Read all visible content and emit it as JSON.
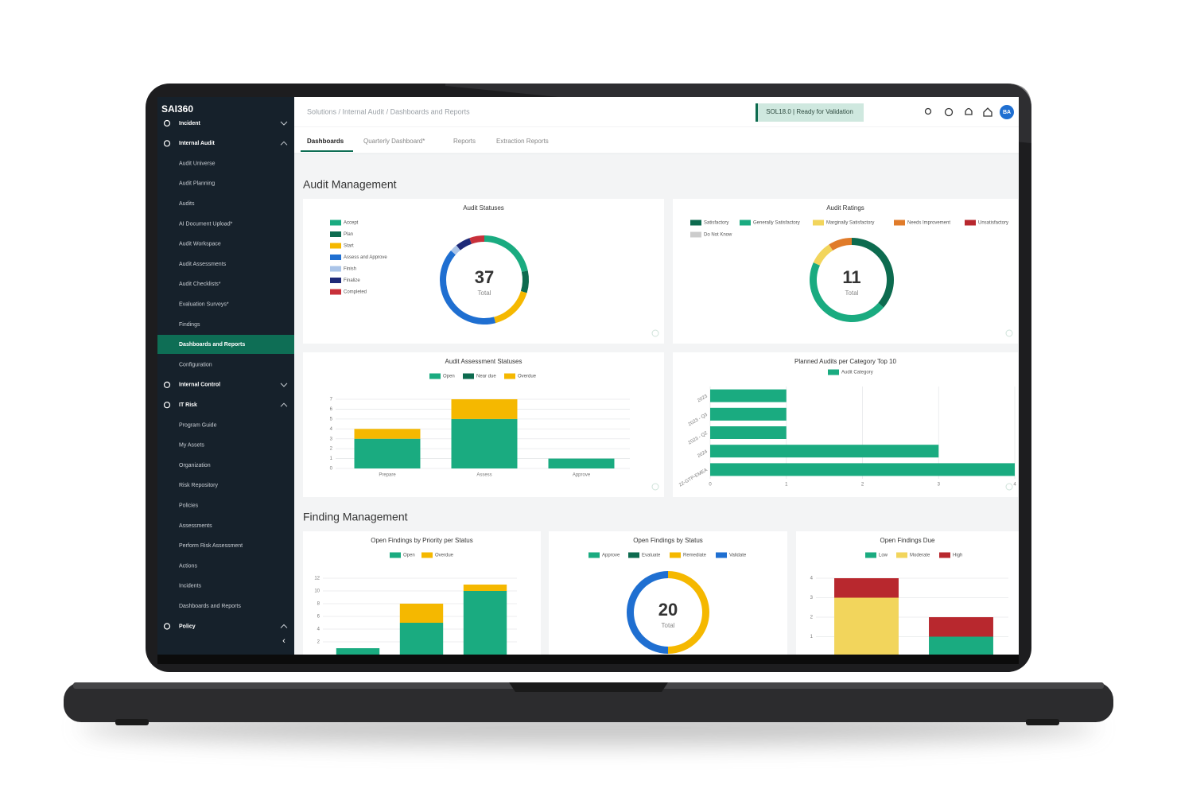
{
  "sidebar": {
    "logo": "SAI360",
    "groups": [
      {
        "label": "Incident",
        "items": []
      },
      {
        "label": "Internal Audit",
        "items": [
          "Audit Universe",
          "Audit Planning",
          "Audits",
          "AI Document Upload*",
          "Audit Workspace",
          "Audit Assessments",
          "Audit Checklists*",
          "Evaluation Surveys*",
          "Findings",
          "Dashboards and Reports",
          "Configuration"
        ]
      },
      {
        "label": "Internal Control",
        "items": []
      },
      {
        "label": "IT Risk",
        "items": [
          "Program Guide",
          "My Assets",
          "Organization",
          "Risk Repository",
          "Policies",
          "Assessments",
          "Perform Risk Assessment",
          "Actions",
          "Incidents",
          "Dashboards and Reports"
        ]
      },
      {
        "label": "Policy",
        "items": []
      }
    ]
  },
  "header": {
    "breadcrumb": "Solutions / Internal Audit / Dashboards and Reports",
    "badge": "SOL18.0 | Ready for Validation",
    "avatar": "BA"
  },
  "tabs": [
    "Dashboards",
    "Quarterly Dashboard*",
    "Reports",
    "Extraction Reports"
  ],
  "sections": [
    "Audit Management",
    "Finding Management"
  ],
  "chart_data": [
    {
      "type": "donut",
      "title": "Audit Statuses",
      "categories": [
        "Accept",
        "Plan",
        "Start",
        "Assess and Approve",
        "Finish",
        "Finalize",
        "Completed"
      ],
      "values": [
        8,
        3,
        6,
        15,
        1,
        2,
        2
      ],
      "colors": [
        "#1aab80",
        "#0d6b4f",
        "#f5b800",
        "#1f6fd1",
        "#aac4e8",
        "#1e2a78",
        "#c8303a"
      ],
      "total": 37,
      "total_label": "Total",
      "legend": "left"
    },
    {
      "type": "donut",
      "title": "Audit Ratings",
      "categories": [
        "Satisfactory",
        "Generally Satisfactory",
        "Marginally Satisfactory",
        "Needs Improvement",
        "Unsatisfactory",
        "Do Not Know"
      ],
      "values": [
        4,
        5,
        1,
        1,
        0,
        0
      ],
      "colors": [
        "#0d6b4f",
        "#1aab80",
        "#f2d55c",
        "#e07b2a",
        "#b8282e",
        "#cccccc"
      ],
      "total": 11,
      "total_label": "Total",
      "legend": "top"
    },
    {
      "type": "stacked_bar",
      "title": "Audit Assessment Statuses",
      "categories": [
        "Prepare",
        "Assess",
        "Approve"
      ],
      "series": [
        {
          "name": "Open",
          "color": "#1aab80",
          "values": [
            3,
            5,
            1
          ]
        },
        {
          "name": "Near due",
          "color": "#0d6b4f",
          "values": [
            0,
            0,
            0
          ]
        },
        {
          "name": "Overdue",
          "color": "#f5b800",
          "values": [
            1,
            2,
            0
          ]
        }
      ],
      "ylim": [
        0,
        7
      ],
      "yticks": [
        0,
        1,
        2,
        3,
        4,
        5,
        6,
        7
      ],
      "grid": true,
      "legend": "top"
    },
    {
      "type": "horizontal_bar",
      "title": "Planned Audits per Category Top 10",
      "categories": [
        "2023",
        "2023 - Q3",
        "2023 - Q2",
        "2024",
        "22-GTP-EMEA"
      ],
      "series": [
        {
          "name": "Audit Category",
          "color": "#1aab80",
          "values": [
            1,
            1,
            1,
            3,
            4
          ]
        }
      ],
      "xlim": [
        0,
        4
      ],
      "xticks": [
        0,
        1,
        2,
        3,
        4
      ],
      "grid": true,
      "legend": "top"
    },
    {
      "type": "stacked_bar",
      "title": "Open Findings by Priority per Status",
      "categories": [
        null,
        null,
        null
      ],
      "series": [
        {
          "name": "Open",
          "color": "#1aab80",
          "values": [
            1,
            5,
            10
          ]
        },
        {
          "name": "Overdue",
          "color": "#f5b800",
          "values": [
            0,
            3,
            1
          ]
        }
      ],
      "ylim": [
        0,
        12
      ],
      "yticks": [
        2,
        4,
        6,
        8,
        10,
        12
      ],
      "grid": true,
      "legend": "top"
    },
    {
      "type": "donut",
      "title": "Open Findings by Status",
      "categories": [
        "Approve",
        "Evaluate",
        "Remediate",
        "Validate"
      ],
      "values": [
        0,
        0,
        10,
        10
      ],
      "colors": [
        "#1aab80",
        "#0d6b4f",
        "#f5b800",
        "#1f6fd1"
      ],
      "total": 20,
      "total_label": "Total",
      "legend": "top"
    },
    {
      "type": "stacked_bar",
      "title": "Open Findings Due",
      "categories": [
        null,
        null
      ],
      "series": [
        {
          "name": "Low",
          "color": "#1aab80",
          "values": [
            0,
            1
          ]
        },
        {
          "name": "Moderate",
          "color": "#f2d55c",
          "values": [
            3,
            0
          ]
        },
        {
          "name": "High",
          "color": "#b8282e",
          "values": [
            1,
            1
          ]
        }
      ],
      "ylim": [
        0,
        4
      ],
      "yticks": [
        1,
        2,
        3,
        4
      ],
      "grid": true,
      "legend": "top"
    }
  ]
}
